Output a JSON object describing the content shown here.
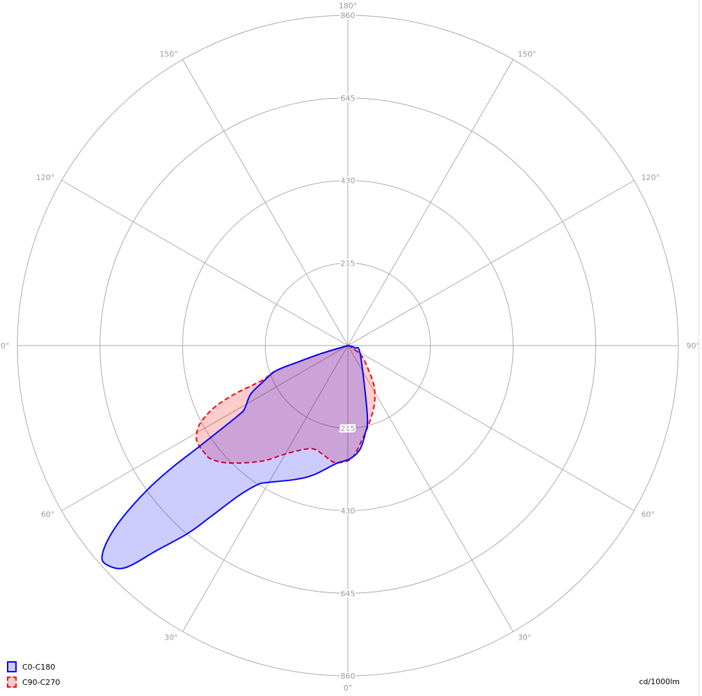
{
  "chart_data": {
    "type": "polar",
    "rmax": 860,
    "ring_ticks": [
      215,
      430,
      645,
      860
    ],
    "angle_ticks": [
      {
        "angle": 180,
        "label": "180°"
      },
      {
        "angle": 150,
        "label": "150°"
      },
      {
        "angle": -150,
        "label": "150°"
      },
      {
        "angle": 120,
        "label": "120°"
      },
      {
        "angle": -120,
        "label": "120°"
      },
      {
        "angle": 90,
        "label": "90°"
      },
      {
        "angle": -90,
        "label": "90°"
      },
      {
        "angle": 60,
        "label": "60°"
      },
      {
        "angle": -60,
        "label": "60°"
      },
      {
        "angle": 30,
        "label": "30°"
      },
      {
        "angle": -30,
        "label": "30°"
      },
      {
        "angle": 0,
        "label": "0°"
      }
    ],
    "grid": true,
    "unit_label": "cd/1000lm",
    "legend_position": "bottom-left",
    "series": [
      {
        "name": "C0-C180",
        "color": "#0000ff",
        "fill": "rgba(0,0,255,0.2)",
        "dash": false,
        "points": [
          [
            90,
            0
          ],
          [
            73,
            19
          ],
          [
            54,
            40
          ],
          [
            15.6,
            188
          ],
          [
            11.2,
            233
          ],
          [
            6.5,
            273
          ],
          [
            1,
            295
          ],
          [
            -5.7,
            309
          ],
          [
            -15,
            349
          ],
          [
            -21.8,
            376
          ],
          [
            -30.7,
            415
          ],
          [
            -33,
            432
          ],
          [
            -36,
            483
          ],
          [
            -38.7,
            571
          ],
          [
            -40.4,
            642
          ],
          [
            -43.1,
            734
          ],
          [
            -44.5,
            800
          ],
          [
            -45.8,
            833
          ],
          [
            -48.2,
            850
          ],
          [
            -49.6,
            839
          ],
          [
            -51.2,
            797
          ],
          [
            -52.7,
            735
          ],
          [
            -54.3,
            640
          ],
          [
            -55.2,
            558
          ],
          [
            -55.8,
            467
          ],
          [
            -57.5,
            337
          ],
          [
            -58.7,
            314
          ],
          [
            -63.4,
            283
          ],
          [
            -66.7,
            242
          ],
          [
            -70.7,
            198
          ],
          [
            -71.8,
            133
          ],
          [
            -73.4,
            70
          ],
          [
            -75,
            0
          ]
        ]
      },
      {
        "name": "C90-C270",
        "color": "#ff0000",
        "fill": "rgba(255,0,0,0.2)",
        "dash": true,
        "points": [
          [
            90,
            0
          ],
          [
            70,
            6
          ],
          [
            53,
            45
          ],
          [
            39.8,
            85
          ],
          [
            32.3,
            129
          ],
          [
            23.8,
            170
          ],
          [
            14.9,
            212
          ],
          [
            8.4,
            249
          ],
          [
            3.7,
            283
          ],
          [
            0,
            300
          ],
          [
            -6.8,
            306
          ],
          [
            -13.3,
            290
          ],
          [
            -19.7,
            285
          ],
          [
            -29.3,
            322
          ],
          [
            -36.5,
            374
          ],
          [
            -45.2,
            434
          ],
          [
            -50.4,
            463
          ],
          [
            -53.5,
            466
          ],
          [
            -55.8,
            467
          ],
          [
            -58.6,
            462
          ],
          [
            -62,
            437
          ],
          [
            -65,
            386
          ],
          [
            -66.8,
            321
          ],
          [
            -67.9,
            240
          ],
          [
            -70.7,
            200
          ],
          [
            -71.8,
            135
          ],
          [
            -73.4,
            72
          ],
          [
            -75,
            0
          ]
        ]
      }
    ]
  }
}
